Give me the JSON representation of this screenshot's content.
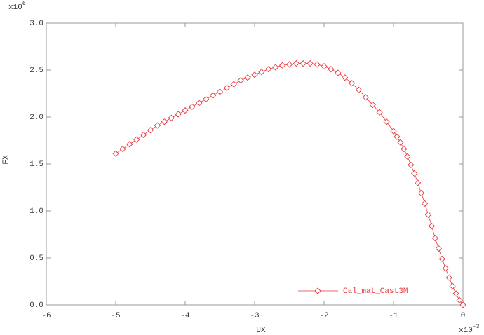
{
  "chart_data": {
    "type": "line",
    "x_label": "UX",
    "y_label": "FX",
    "x_multiplier": {
      "base": "x10",
      "exponent": "-3"
    },
    "y_multiplier": {
      "base": "x10",
      "exponent": "6"
    },
    "xlim": [
      -6,
      0
    ],
    "ylim": [
      0,
      3
    ],
    "xticks": [
      -6,
      -5,
      -4,
      -3,
      -2,
      -1,
      0
    ],
    "yticks": [
      {
        "value": 0,
        "label": "0.0"
      },
      {
        "value": 0.5,
        "label": "0.5"
      },
      {
        "value": 1,
        "label": "1.0"
      },
      {
        "value": 1.5,
        "label": "1.5"
      },
      {
        "value": 2,
        "label": "2.0"
      },
      {
        "value": 2.5,
        "label": "2.5"
      },
      {
        "value": 3,
        "label": "3.0"
      }
    ],
    "legend": "lower right",
    "series": [
      {
        "name": "Cal_mat_Cast3M",
        "color": "#e8393f",
        "marker": "diamond",
        "x": [
          -5.0,
          -4.9,
          -4.8,
          -4.7,
          -4.6,
          -4.5,
          -4.4,
          -4.3,
          -4.2,
          -4.1,
          -4.0,
          -3.9,
          -3.8,
          -3.7,
          -3.6,
          -3.5,
          -3.4,
          -3.3,
          -3.2,
          -3.1,
          -3.0,
          -2.9,
          -2.8,
          -2.7,
          -2.6,
          -2.5,
          -2.4,
          -2.3,
          -2.2,
          -2.1,
          -2.0,
          -1.9,
          -1.8,
          -1.7,
          -1.6,
          -1.5,
          -1.4,
          -1.3,
          -1.2,
          -1.1,
          -1.0,
          -0.95,
          -0.9,
          -0.85,
          -0.8,
          -0.75,
          -0.7,
          -0.65,
          -0.6,
          -0.55,
          -0.5,
          -0.45,
          -0.4,
          -0.35,
          -0.3,
          -0.25,
          -0.2,
          -0.15,
          -0.1,
          -0.05,
          0
        ],
        "values": [
          1.61,
          1.66,
          1.71,
          1.76,
          1.81,
          1.86,
          1.91,
          1.95,
          1.99,
          2.03,
          2.07,
          2.11,
          2.15,
          2.19,
          2.23,
          2.27,
          2.31,
          2.35,
          2.39,
          2.42,
          2.45,
          2.48,
          2.51,
          2.53,
          2.55,
          2.56,
          2.57,
          2.57,
          2.57,
          2.56,
          2.54,
          2.51,
          2.47,
          2.42,
          2.36,
          2.29,
          2.21,
          2.13,
          2.05,
          1.95,
          1.85,
          1.79,
          1.73,
          1.66,
          1.58,
          1.49,
          1.4,
          1.3,
          1.19,
          1.08,
          0.96,
          0.84,
          0.71,
          0.6,
          0.49,
          0.39,
          0.29,
          0.2,
          0.12,
          0.05,
          0
        ]
      }
    ]
  }
}
